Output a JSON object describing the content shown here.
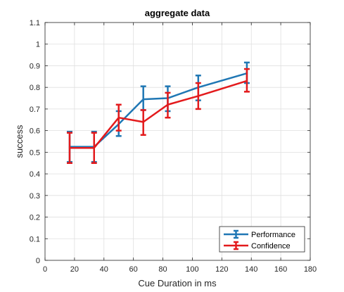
{
  "chart_data": {
    "type": "line",
    "title": "aggregate data",
    "xlabel": "Cue Duration in ms",
    "ylabel": "success",
    "xlim": [
      0,
      180
    ],
    "ylim": [
      0,
      1.1
    ],
    "xticks": [
      "0",
      "20",
      "40",
      "60",
      "80",
      "100",
      "120",
      "140",
      "160",
      "180"
    ],
    "yticks": [
      "0",
      "0.1",
      "0.2",
      "0.3",
      "0.4",
      "0.5",
      "0.6",
      "0.7",
      "0.8",
      "0.9",
      "1",
      "1.1"
    ],
    "grid": true,
    "legend_location": "bottom-right",
    "x": [
      16.7,
      33.3,
      50,
      66.7,
      83.3,
      104,
      137
    ],
    "series": [
      {
        "name": "Performance",
        "color": "#1f77b4",
        "values": [
          0.525,
          0.525,
          0.63,
          0.745,
          0.75,
          0.8,
          0.865
        ],
        "err_low": [
          0.455,
          0.455,
          0.575,
          0.695,
          0.69,
          0.74,
          0.82
        ],
        "err_high": [
          0.595,
          0.595,
          0.69,
          0.805,
          0.805,
          0.855,
          0.915
        ]
      },
      {
        "name": "Confidence",
        "color": "#e31a1c",
        "values": [
          0.52,
          0.52,
          0.66,
          0.64,
          0.72,
          0.76,
          0.83
        ],
        "err_low": [
          0.45,
          0.45,
          0.6,
          0.58,
          0.66,
          0.7,
          0.78
        ],
        "err_high": [
          0.59,
          0.59,
          0.72,
          0.695,
          0.775,
          0.82,
          0.885
        ]
      }
    ]
  }
}
